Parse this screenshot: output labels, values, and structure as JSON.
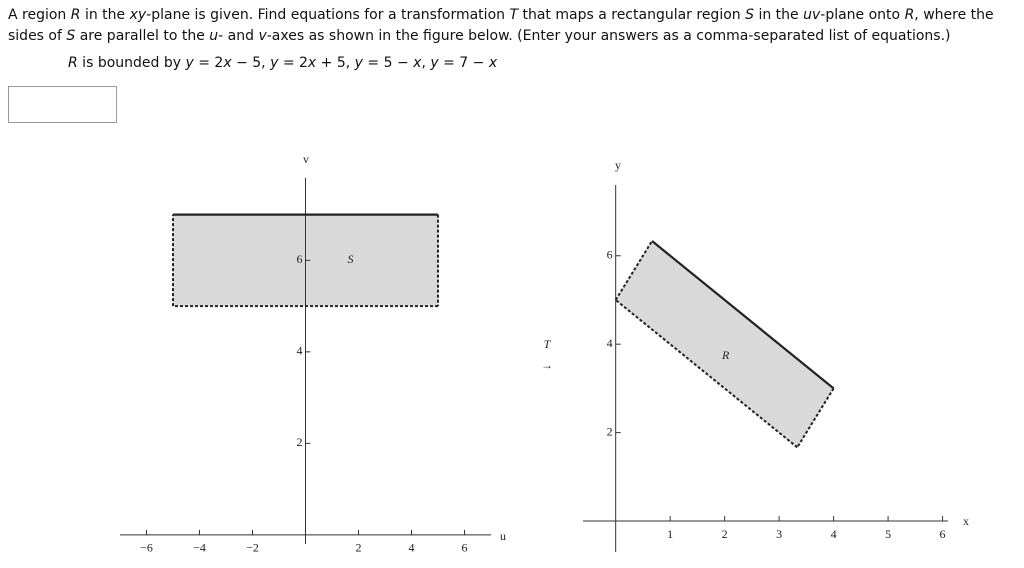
{
  "question": {
    "runs": [
      {
        "text": "A region ",
        "italic": false
      },
      {
        "text": "R",
        "italic": true
      },
      {
        "text": " in the ",
        "italic": false
      },
      {
        "text": "xy",
        "italic": true
      },
      {
        "text": "-plane is given. Find equations for a transformation ",
        "italic": false
      },
      {
        "text": "T",
        "italic": true
      },
      {
        "text": " that maps a rectangular region ",
        "italic": false
      },
      {
        "text": "S",
        "italic": true
      },
      {
        "text": " in the ",
        "italic": false
      },
      {
        "text": "uv",
        "italic": true
      },
      {
        "text": "-plane onto ",
        "italic": false
      },
      {
        "text": "R",
        "italic": true
      },
      {
        "text": ", where the sides of ",
        "italic": false
      },
      {
        "text": "S",
        "italic": true
      },
      {
        "text": " are parallel to the ",
        "italic": false
      },
      {
        "text": "u",
        "italic": true
      },
      {
        "text": "- and ",
        "italic": false
      },
      {
        "text": "v",
        "italic": true
      },
      {
        "text": "-axes as shown in the figure below. (Enter your answers as a comma-separated list of equations.)",
        "italic": false
      }
    ],
    "bounds_runs": [
      {
        "text": "R",
        "italic": true
      },
      {
        "text": " is bounded by ",
        "italic": false
      },
      {
        "text": "y",
        "italic": true
      },
      {
        "text": " = 2",
        "italic": false
      },
      {
        "text": "x",
        "italic": true
      },
      {
        "text": " − 5, ",
        "italic": false
      },
      {
        "text": "y",
        "italic": true
      },
      {
        "text": " = 2",
        "italic": false
      },
      {
        "text": "x",
        "italic": true
      },
      {
        "text": " + 5, ",
        "italic": false
      },
      {
        "text": "y",
        "italic": true
      },
      {
        "text": " = 5 − ",
        "italic": false
      },
      {
        "text": "x",
        "italic": true
      },
      {
        "text": ", ",
        "italic": false
      },
      {
        "text": "y",
        "italic": true
      },
      {
        "text": " = 7 − ",
        "italic": false
      },
      {
        "text": "x",
        "italic": true
      }
    ]
  },
  "transform": {
    "label": "T",
    "arrow": "→"
  },
  "figures": [
    {
      "xlabel": "u",
      "ylabel": "v",
      "region_label": "S",
      "xlim": [
        -7,
        7
      ],
      "ylim": [
        -0.2,
        7.8
      ],
      "xticks": [
        {
          "value": -6,
          "label": "−6"
        },
        {
          "value": -4,
          "label": "−4"
        },
        {
          "value": -2,
          "label": "−2"
        },
        2,
        4,
        6
      ],
      "yticks": [
        2,
        4,
        6
      ],
      "vertices": [
        [
          -5,
          7
        ],
        [
          5,
          7
        ],
        [
          5,
          5
        ],
        [
          -5,
          5
        ]
      ],
      "edge_styles": [
        "solid",
        "dashed",
        "dashed",
        "dashed"
      ]
    },
    {
      "xlabel": "x",
      "ylabel": "y",
      "region_label": "R",
      "xlim": [
        -0.6,
        6.1
      ],
      "ylim": [
        -0.7,
        7.6
      ],
      "xticks": [
        1,
        2,
        3,
        4,
        5,
        6
      ],
      "yticks": [
        2,
        4,
        6
      ],
      "vertices": [
        [
          0.667,
          6.333
        ],
        [
          4,
          3
        ],
        [
          3.333,
          1.667
        ],
        [
          0,
          5
        ]
      ],
      "edge_styles": [
        "solid",
        "dashed",
        "dashed",
        "dashed"
      ]
    }
  ]
}
